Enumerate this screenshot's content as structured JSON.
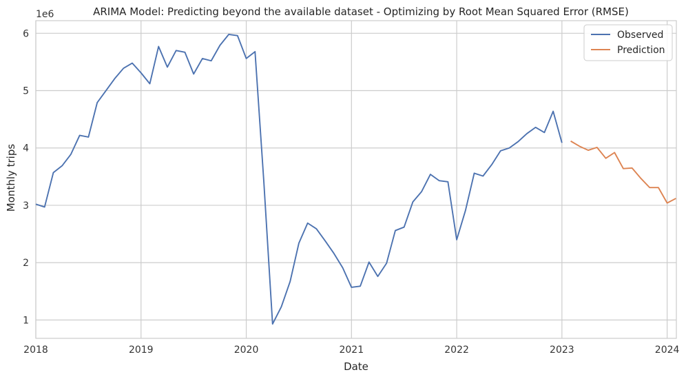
{
  "chart_data": {
    "type": "line",
    "title": "ARIMA Model: Predicting beyond the available dataset - Optimizing by Root Mean Squared Error (RMSE)",
    "xlabel": "Date",
    "ylabel": "Monthly trips",
    "y_scale_note": "1e6",
    "xlim": [
      "2018-01",
      "2024-01"
    ],
    "ylim": [
      0.68,
      6.22
    ],
    "x_ticks": [
      "2018",
      "2019",
      "2020",
      "2021",
      "2022",
      "2023",
      "2024"
    ],
    "y_ticks": [
      1,
      2,
      3,
      4,
      5,
      6
    ],
    "grid": true,
    "legend_position": "top-right",
    "colors": {
      "observed": "#4c72b0",
      "prediction": "#dd8452",
      "grid": "#cccccc",
      "spine": "#cccccc"
    },
    "series": [
      {
        "name": "Observed",
        "x": [
          "2018-01",
          "2018-02",
          "2018-03",
          "2018-04",
          "2018-05",
          "2018-06",
          "2018-07",
          "2018-08",
          "2018-09",
          "2018-10",
          "2018-11",
          "2018-12",
          "2019-01",
          "2019-02",
          "2019-03",
          "2019-04",
          "2019-05",
          "2019-06",
          "2019-07",
          "2019-08",
          "2019-09",
          "2019-10",
          "2019-11",
          "2019-12",
          "2020-01",
          "2020-02",
          "2020-03",
          "2020-04",
          "2020-05",
          "2020-06",
          "2020-07",
          "2020-08",
          "2020-09",
          "2020-10",
          "2020-11",
          "2020-12",
          "2021-01",
          "2021-02",
          "2021-03",
          "2021-04",
          "2021-05",
          "2021-06",
          "2021-07",
          "2021-08",
          "2021-09",
          "2021-10",
          "2021-11",
          "2021-12",
          "2022-01",
          "2022-02",
          "2022-03",
          "2022-04",
          "2022-05",
          "2022-06",
          "2022-07",
          "2022-08",
          "2022-09",
          "2022-10",
          "2022-11",
          "2022-12",
          "2023-01"
        ],
        "values": [
          3.02,
          2.97,
          3.57,
          3.69,
          3.89,
          4.22,
          4.19,
          4.79,
          5.0,
          5.21,
          5.39,
          5.48,
          5.31,
          5.12,
          5.77,
          5.41,
          5.7,
          5.67,
          5.29,
          5.56,
          5.52,
          5.79,
          5.98,
          5.96,
          5.56,
          5.68,
          3.42,
          0.93,
          1.23,
          1.67,
          2.34,
          2.69,
          2.59,
          2.38,
          2.16,
          1.91,
          1.57,
          1.59,
          2.01,
          1.76,
          1.99,
          2.56,
          2.62,
          3.06,
          3.24,
          3.54,
          3.43,
          3.41,
          2.4,
          2.91,
          3.56,
          3.51,
          3.71,
          3.95,
          4.0,
          4.11,
          4.25,
          4.36,
          4.27,
          4.64,
          4.09
        ]
      },
      {
        "name": "Prediction",
        "x": [
          "2023-02",
          "2023-03",
          "2023-04",
          "2023-05",
          "2023-06",
          "2023-07",
          "2023-08",
          "2023-09",
          "2023-10",
          "2023-11",
          "2023-12",
          "2024-01",
          "2024-02"
        ],
        "values": [
          4.12,
          4.03,
          3.96,
          4.01,
          3.82,
          3.92,
          3.64,
          3.65,
          3.47,
          3.31,
          3.31,
          3.04,
          3.12
        ]
      }
    ]
  }
}
